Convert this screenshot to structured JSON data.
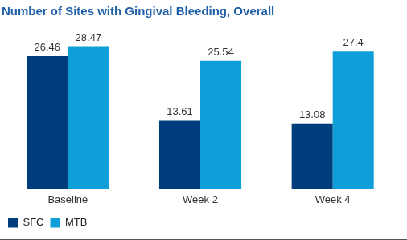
{
  "chart_data": {
    "type": "bar",
    "title": "Number of Sites with Gingival Bleeding, Overall",
    "categories": [
      "Baseline",
      "Week 2",
      "Week 4"
    ],
    "series": [
      {
        "name": "SFC",
        "color": "#003d7c",
        "values": [
          26.46,
          13.61,
          13.08
        ]
      },
      {
        "name": "MTB",
        "color": "#0e9fd8",
        "values": [
          28.47,
          25.54,
          27.4
        ]
      }
    ],
    "ylim": [
      0,
      30
    ],
    "grid": false,
    "legend": "lower left",
    "data_labels": true,
    "tick_labels": "x"
  }
}
